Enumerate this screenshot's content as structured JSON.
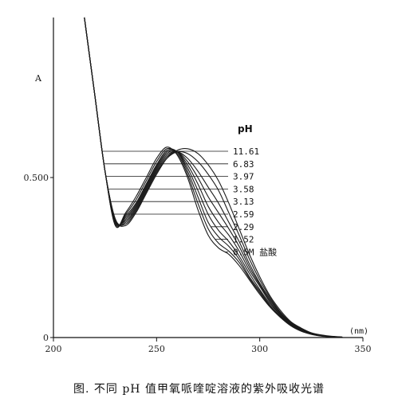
{
  "chart_data": {
    "type": "line",
    "title": "",
    "ylabel": "A",
    "xlabel": "(nm)",
    "x_ticks": [
      200,
      250,
      300,
      350
    ],
    "x_tick_labels": [
      "200",
      "250",
      "300",
      "350"
    ],
    "y_ticks": [
      0,
      0.5
    ],
    "y_tick_labels": [
      "0",
      "0.500"
    ],
    "xlim": [
      200,
      350
    ],
    "ylim": [
      0,
      1.0
    ],
    "grid": false,
    "legend_header": "pH",
    "series": [
      {
        "name": "11.61",
        "x": [
          215,
          220,
          225,
          230,
          235,
          240,
          245,
          250,
          255,
          260,
          265,
          270,
          275,
          280,
          285,
          290,
          295,
          300,
          305,
          310,
          315,
          320,
          325,
          330,
          335,
          340
        ],
        "y": [
          1.0,
          0.76,
          0.52,
          0.37,
          0.35,
          0.39,
          0.45,
          0.51,
          0.56,
          0.585,
          0.59,
          0.575,
          0.54,
          0.49,
          0.42,
          0.34,
          0.26,
          0.19,
          0.13,
          0.085,
          0.05,
          0.03,
          0.015,
          0.008,
          0.004,
          0.002
        ]
      },
      {
        "name": "6.83",
        "x": [
          215,
          220,
          225,
          230,
          235,
          240,
          245,
          250,
          255,
          260,
          265,
          270,
          275,
          280,
          285,
          290,
          295,
          300,
          305,
          310,
          315,
          320,
          325,
          330,
          335,
          340
        ],
        "y": [
          1.0,
          0.76,
          0.52,
          0.37,
          0.355,
          0.395,
          0.455,
          0.515,
          0.56,
          0.58,
          0.575,
          0.55,
          0.51,
          0.46,
          0.39,
          0.32,
          0.245,
          0.18,
          0.125,
          0.08,
          0.048,
          0.028,
          0.014,
          0.007,
          0.003,
          0.001
        ]
      },
      {
        "name": "3.97",
        "x": [
          215,
          220,
          225,
          230,
          235,
          240,
          245,
          250,
          255,
          260,
          265,
          270,
          275,
          280,
          285,
          290,
          295,
          300,
          305,
          310,
          315,
          320,
          325,
          330,
          335,
          340
        ],
        "y": [
          1.0,
          0.76,
          0.52,
          0.365,
          0.36,
          0.4,
          0.46,
          0.52,
          0.565,
          0.58,
          0.56,
          0.52,
          0.47,
          0.42,
          0.36,
          0.3,
          0.23,
          0.17,
          0.12,
          0.078,
          0.046,
          0.026,
          0.013,
          0.006,
          0.003,
          0.001
        ]
      },
      {
        "name": "3.58",
        "x": [
          215,
          220,
          225,
          230,
          235,
          240,
          245,
          250,
          255,
          260,
          265,
          270,
          275,
          280,
          285,
          290,
          295,
          300,
          305,
          310,
          315,
          320,
          325,
          330,
          335,
          340
        ],
        "y": [
          1.0,
          0.76,
          0.52,
          0.365,
          0.365,
          0.405,
          0.465,
          0.525,
          0.57,
          0.58,
          0.55,
          0.5,
          0.44,
          0.39,
          0.34,
          0.285,
          0.22,
          0.165,
          0.115,
          0.075,
          0.044,
          0.025,
          0.012,
          0.006,
          0.003,
          0.001
        ]
      },
      {
        "name": "3.13",
        "x": [
          215,
          220,
          225,
          230,
          235,
          240,
          245,
          250,
          255,
          260,
          265,
          270,
          275,
          280,
          285,
          290,
          295,
          300,
          305,
          310,
          315,
          320,
          325,
          330,
          335,
          340
        ],
        "y": [
          1.0,
          0.76,
          0.52,
          0.36,
          0.37,
          0.41,
          0.47,
          0.53,
          0.575,
          0.58,
          0.54,
          0.48,
          0.41,
          0.36,
          0.32,
          0.27,
          0.21,
          0.16,
          0.11,
          0.072,
          0.042,
          0.024,
          0.012,
          0.006,
          0.003,
          0.001
        ]
      },
      {
        "name": "2.59",
        "x": [
          215,
          220,
          225,
          230,
          235,
          240,
          245,
          250,
          255,
          260,
          265,
          270,
          275,
          280,
          285,
          290,
          295,
          300,
          305,
          310,
          315,
          320,
          325,
          330,
          335,
          340
        ],
        "y": [
          1.0,
          0.76,
          0.52,
          0.36,
          0.375,
          0.415,
          0.475,
          0.535,
          0.58,
          0.58,
          0.53,
          0.46,
          0.385,
          0.335,
          0.3,
          0.255,
          0.2,
          0.15,
          0.105,
          0.07,
          0.041,
          0.023,
          0.011,
          0.005,
          0.002,
          0.001
        ]
      },
      {
        "name": "2.29",
        "x": [
          215,
          220,
          225,
          230,
          235,
          240,
          245,
          250,
          255,
          260,
          265,
          270,
          275,
          280,
          285,
          290,
          295,
          300,
          305,
          310,
          315,
          320,
          325,
          330,
          335,
          340
        ],
        "y": [
          1.0,
          0.76,
          0.52,
          0.355,
          0.38,
          0.42,
          0.48,
          0.54,
          0.585,
          0.58,
          0.52,
          0.44,
          0.36,
          0.315,
          0.285,
          0.245,
          0.19,
          0.145,
          0.1,
          0.067,
          0.04,
          0.022,
          0.011,
          0.005,
          0.002,
          0.001
        ]
      },
      {
        "name": "1.52",
        "x": [
          215,
          220,
          225,
          230,
          235,
          240,
          245,
          250,
          255,
          260,
          265,
          270,
          275,
          280,
          285,
          290,
          295,
          300,
          305,
          310,
          315,
          320,
          325,
          330,
          335,
          340
        ],
        "y": [
          1.0,
          0.76,
          0.52,
          0.35,
          0.385,
          0.43,
          0.49,
          0.55,
          0.59,
          0.575,
          0.51,
          0.42,
          0.34,
          0.295,
          0.27,
          0.235,
          0.185,
          0.14,
          0.098,
          0.065,
          0.038,
          0.021,
          0.01,
          0.005,
          0.002,
          0.001
        ]
      },
      {
        "name": "0.5M 盐酸",
        "x": [
          215,
          220,
          225,
          230,
          235,
          240,
          245,
          250,
          255,
          260,
          265,
          270,
          275,
          280,
          285,
          290,
          295,
          300,
          305,
          310,
          315,
          320,
          325,
          330,
          335,
          340
        ],
        "y": [
          1.0,
          0.76,
          0.52,
          0.35,
          0.39,
          0.44,
          0.5,
          0.56,
          0.595,
          0.57,
          0.5,
          0.4,
          0.32,
          0.28,
          0.26,
          0.225,
          0.18,
          0.135,
          0.095,
          0.063,
          0.037,
          0.02,
          0.01,
          0.004,
          0.002,
          0.001
        ]
      }
    ]
  },
  "caption": "图. 不同 pH 值甲氧哌喹啶溶液的紫外吸收光谱"
}
